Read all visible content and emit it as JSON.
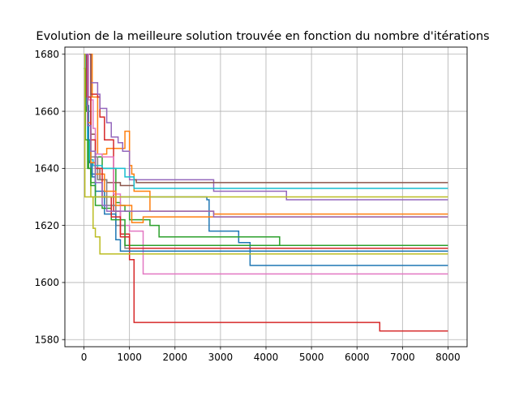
{
  "chart_data": {
    "type": "line",
    "title": "Evolution de la meilleure solution trouvée en fonction du nombre d'itérations",
    "xlabel": "",
    "ylabel": "",
    "xlim": [
      -420,
      8420
    ],
    "ylim": [
      1577.5,
      1682.5
    ],
    "xticks": [
      0,
      1000,
      2000,
      3000,
      4000,
      5000,
      6000,
      7000,
      8000
    ],
    "yticks": [
      1580,
      1600,
      1620,
      1640,
      1660,
      1680
    ],
    "grid": true,
    "series": [
      {
        "color": "#1f77b4",
        "x": [
          0,
          40,
          80,
          120,
          180,
          250,
          350,
          600,
          900,
          1400,
          2700,
          2750,
          3400,
          3650,
          8000
        ],
        "y": [
          1680,
          1664,
          1650,
          1642,
          1637,
          1630,
          1630,
          1630,
          1630,
          1630,
          1629,
          1618,
          1614,
          1606,
          1606
        ]
      },
      {
        "color": "#ff7f0e",
        "x": [
          0,
          120,
          180,
          300,
          500,
          900,
          1000,
          1050,
          1100,
          1450,
          2850,
          8000
        ],
        "y": [
          1680,
          1680,
          1665,
          1645,
          1647,
          1653,
          1641,
          1638,
          1632,
          1625,
          1624,
          1624
        ]
      },
      {
        "color": "#2ca02c",
        "x": [
          0,
          50,
          100,
          150,
          250,
          400,
          700,
          800,
          900,
          1000,
          1450,
          1650,
          4300,
          8000
        ],
        "y": [
          1680,
          1660,
          1640,
          1635,
          1644,
          1640,
          1628,
          1627,
          1625,
          1622,
          1620,
          1616,
          1613,
          1613
        ]
      },
      {
        "color": "#d62728",
        "x": [
          0,
          150,
          300,
          350,
          450,
          650,
          800,
          1000,
          1100,
          6500,
          8000
        ],
        "y": [
          1680,
          1666,
          1665,
          1658,
          1650,
          1625,
          1617,
          1608,
          1586,
          1583,
          1583
        ]
      },
      {
        "color": "#9467bd",
        "x": [
          0,
          150,
          200,
          300,
          350,
          500,
          600,
          750,
          850,
          1000,
          2850,
          4450,
          8000
        ],
        "y": [
          1680,
          1670,
          1670,
          1666,
          1661,
          1656,
          1651,
          1649,
          1646,
          1636,
          1632,
          1629,
          1629
        ]
      },
      {
        "color": "#8c564b",
        "x": [
          0,
          150,
          250,
          350,
          500,
          800,
          1000,
          1100,
          1150,
          1450,
          8000
        ],
        "y": [
          1680,
          1652,
          1640,
          1636,
          1635,
          1634,
          1634,
          1636,
          1635,
          1635,
          1635
        ]
      },
      {
        "color": "#e377c2",
        "x": [
          0,
          100,
          200,
          250,
          400,
          650,
          800,
          1000,
          1300,
          8000
        ],
        "y": [
          1680,
          1664,
          1654,
          1645,
          1644,
          1631,
          1620,
          1618,
          1603,
          1603
        ]
      },
      {
        "color": "#7f7f7f",
        "x": [
          0,
          80,
          150,
          300,
          500,
          700,
          900,
          1400,
          8000
        ],
        "y": [
          1680,
          1660,
          1644,
          1636,
          1627,
          1620,
          1612,
          1612,
          1612
        ]
      },
      {
        "color": "#bcbd22",
        "x": [
          0,
          50,
          100,
          150,
          200,
          250,
          350,
          8000
        ],
        "y": [
          1680,
          1662,
          1650,
          1630,
          1619,
          1616,
          1610,
          1610
        ]
      },
      {
        "color": "#17becf",
        "x": [
          0,
          40,
          80,
          120,
          200,
          400,
          600,
          900,
          1100,
          1400,
          8000
        ],
        "y": [
          1680,
          1670,
          1650,
          1643,
          1641,
          1640,
          1640,
          1637,
          1633,
          1633,
          1633
        ]
      },
      {
        "color": "#1f77b4",
        "x": [
          0,
          60,
          100,
          150,
          250,
          450,
          700,
          800,
          1400,
          8000
        ],
        "y": [
          1680,
          1662,
          1650,
          1638,
          1632,
          1624,
          1615,
          1611,
          1611,
          1611
        ]
      },
      {
        "color": "#ff7f0e",
        "x": [
          0,
          80,
          150,
          250,
          450,
          700,
          1050,
          1300,
          8000
        ],
        "y": [
          1680,
          1656,
          1642,
          1638,
          1632,
          1627,
          1621,
          1623,
          1623
        ]
      },
      {
        "color": "#2ca02c",
        "x": [
          0,
          30,
          80,
          150,
          250,
          400,
          600,
          900,
          8000
        ],
        "y": [
          1675,
          1650,
          1640,
          1634,
          1627,
          1626,
          1622,
          1613,
          1613
        ]
      },
      {
        "color": "#d62728",
        "x": [
          0,
          60,
          150,
          250,
          400,
          600,
          800,
          1000,
          1400,
          8000
        ],
        "y": [
          1680,
          1665,
          1650,
          1640,
          1630,
          1623,
          1616,
          1612,
          1612,
          1612
        ]
      },
      {
        "color": "#9467bd",
        "x": [
          0,
          80,
          150,
          250,
          400,
          500,
          700,
          1400,
          2850,
          8000
        ],
        "y": [
          1680,
          1655,
          1646,
          1635,
          1627,
          1625,
          1625,
          1625,
          1623,
          1623
        ]
      },
      {
        "color": "#bcbd22",
        "x": [
          0,
          20,
          40,
          8000
        ],
        "y": [
          1680,
          1630,
          1630,
          1630
        ]
      }
    ]
  }
}
